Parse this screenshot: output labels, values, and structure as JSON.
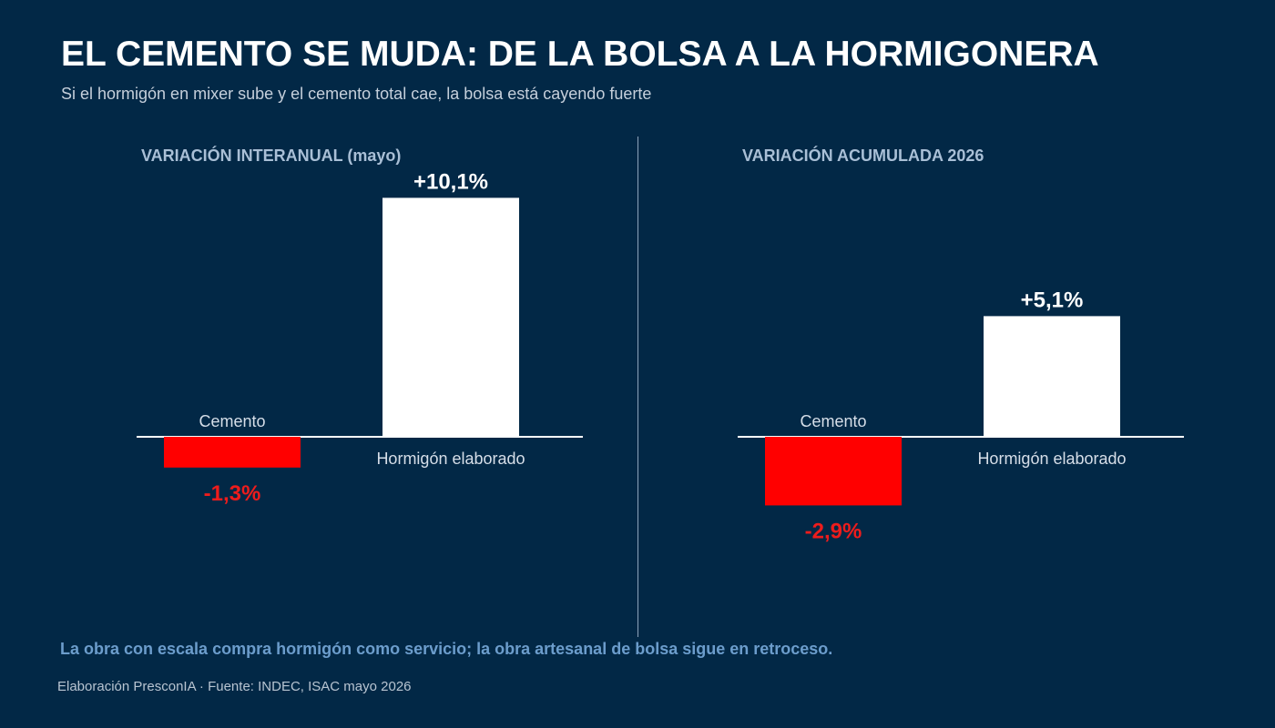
{
  "title": "EL CEMENTO SE MUDA: DE LA BOLSA A LA HORMIGONERA",
  "subtitle": "Si el hormigón en mixer sube y el cemento total cae, la bolsa está cayendo fuerte",
  "takeaway": "La obra con escala compra hormigón como servicio; la obra artesanal de bolsa sigue en retroceso.",
  "source": "Elaboración PresconIA · Fuente: INDEC, ISAC mayo 2026",
  "colors": {
    "background": "#022846",
    "positive_bar": "#ffffff",
    "negative_bar": "#ff0000",
    "positive_label": "#ffffff",
    "negative_label": "#ee1c1c",
    "category_label": "#d6dee8",
    "panel_title": "#a9bfd6",
    "takeaway": "#6c9dcc"
  },
  "chart_data": [
    {
      "type": "bar",
      "title": "VARIACIÓN INTERANUAL (mayo)",
      "categories": [
        "Cemento",
        "Hormigón elaborado"
      ],
      "values": [
        -1.3,
        10.1
      ],
      "value_labels": [
        "-1,3%",
        "+10,1%"
      ],
      "unit": "%",
      "ylim": [
        -10,
        11
      ],
      "grid": false,
      "legend": "none"
    },
    {
      "type": "bar",
      "title": "VARIACIÓN ACUMULADA 2026",
      "categories": [
        "Cemento",
        "Hormigón elaborado"
      ],
      "values": [
        -2.9,
        5.1
      ],
      "value_labels": [
        "-2,9%",
        "+5,1%"
      ],
      "unit": "%",
      "ylim": [
        -10,
        11
      ],
      "grid": false,
      "legend": "none"
    }
  ]
}
